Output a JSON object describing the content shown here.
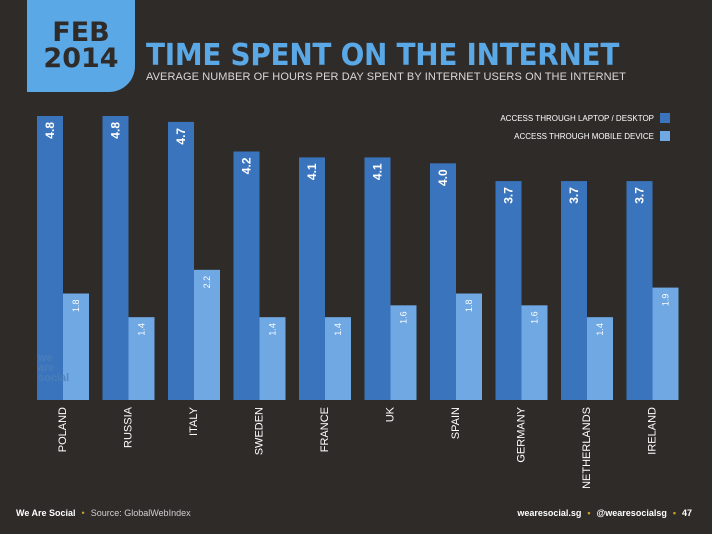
{
  "header": {
    "date_line1": "FEB",
    "date_line2": "2014",
    "title": "TIME SPENT ON THE INTERNET",
    "subtitle": "AVERAGE NUMBER OF HOURS PER DAY SPENT BY INTERNET USERS ON THE INTERNET"
  },
  "watermark": [
    "we",
    "are",
    "social"
  ],
  "chart_data": {
    "type": "bar",
    "title": "TIME SPENT ON THE INTERNET",
    "subtitle": "AVERAGE NUMBER OF HOURS PER DAY SPENT BY INTERNET USERS ON THE INTERNET",
    "categories": [
      "POLAND",
      "RUSSIA",
      "ITALY",
      "SWEDEN",
      "FRANCE",
      "UK",
      "SPAIN",
      "GERMANY",
      "NETHERLANDS",
      "IRELAND"
    ],
    "series": [
      {
        "name": "ACCESS THROUGH LAPTOP / DESKTOP",
        "color": "#3a74bd",
        "values": [
          4.8,
          4.8,
          4.7,
          4.2,
          4.1,
          4.1,
          4.0,
          3.7,
          3.7,
          3.7
        ],
        "labels": [
          "4.8",
          "4.8",
          "4.7",
          "4.2",
          "4.1",
          "4.1",
          "4.0",
          "3.7",
          "3.7",
          "3.7"
        ]
      },
      {
        "name": "ACCESS THROUGH MOBILE DEVICE",
        "color": "#6fa8e2",
        "values": [
          1.8,
          1.4,
          2.2,
          1.4,
          1.4,
          1.6,
          1.8,
          1.6,
          1.4,
          1.9
        ],
        "labels": [
          "1.8",
          "1.4",
          "2.2",
          "1.4",
          "1.4",
          "1.6",
          "1.8",
          "1.6",
          "1.4",
          "1.9"
        ]
      }
    ],
    "ylim": [
      0,
      4.8
    ],
    "grid": false,
    "legend_position": "top-right",
    "xlabel": "",
    "ylabel": ""
  },
  "footer": {
    "brand": "We Are Social",
    "source": "Source: GlobalWebIndex",
    "site": "wearesocial.sg",
    "handle": "@wearesocialsg",
    "page": "47"
  }
}
